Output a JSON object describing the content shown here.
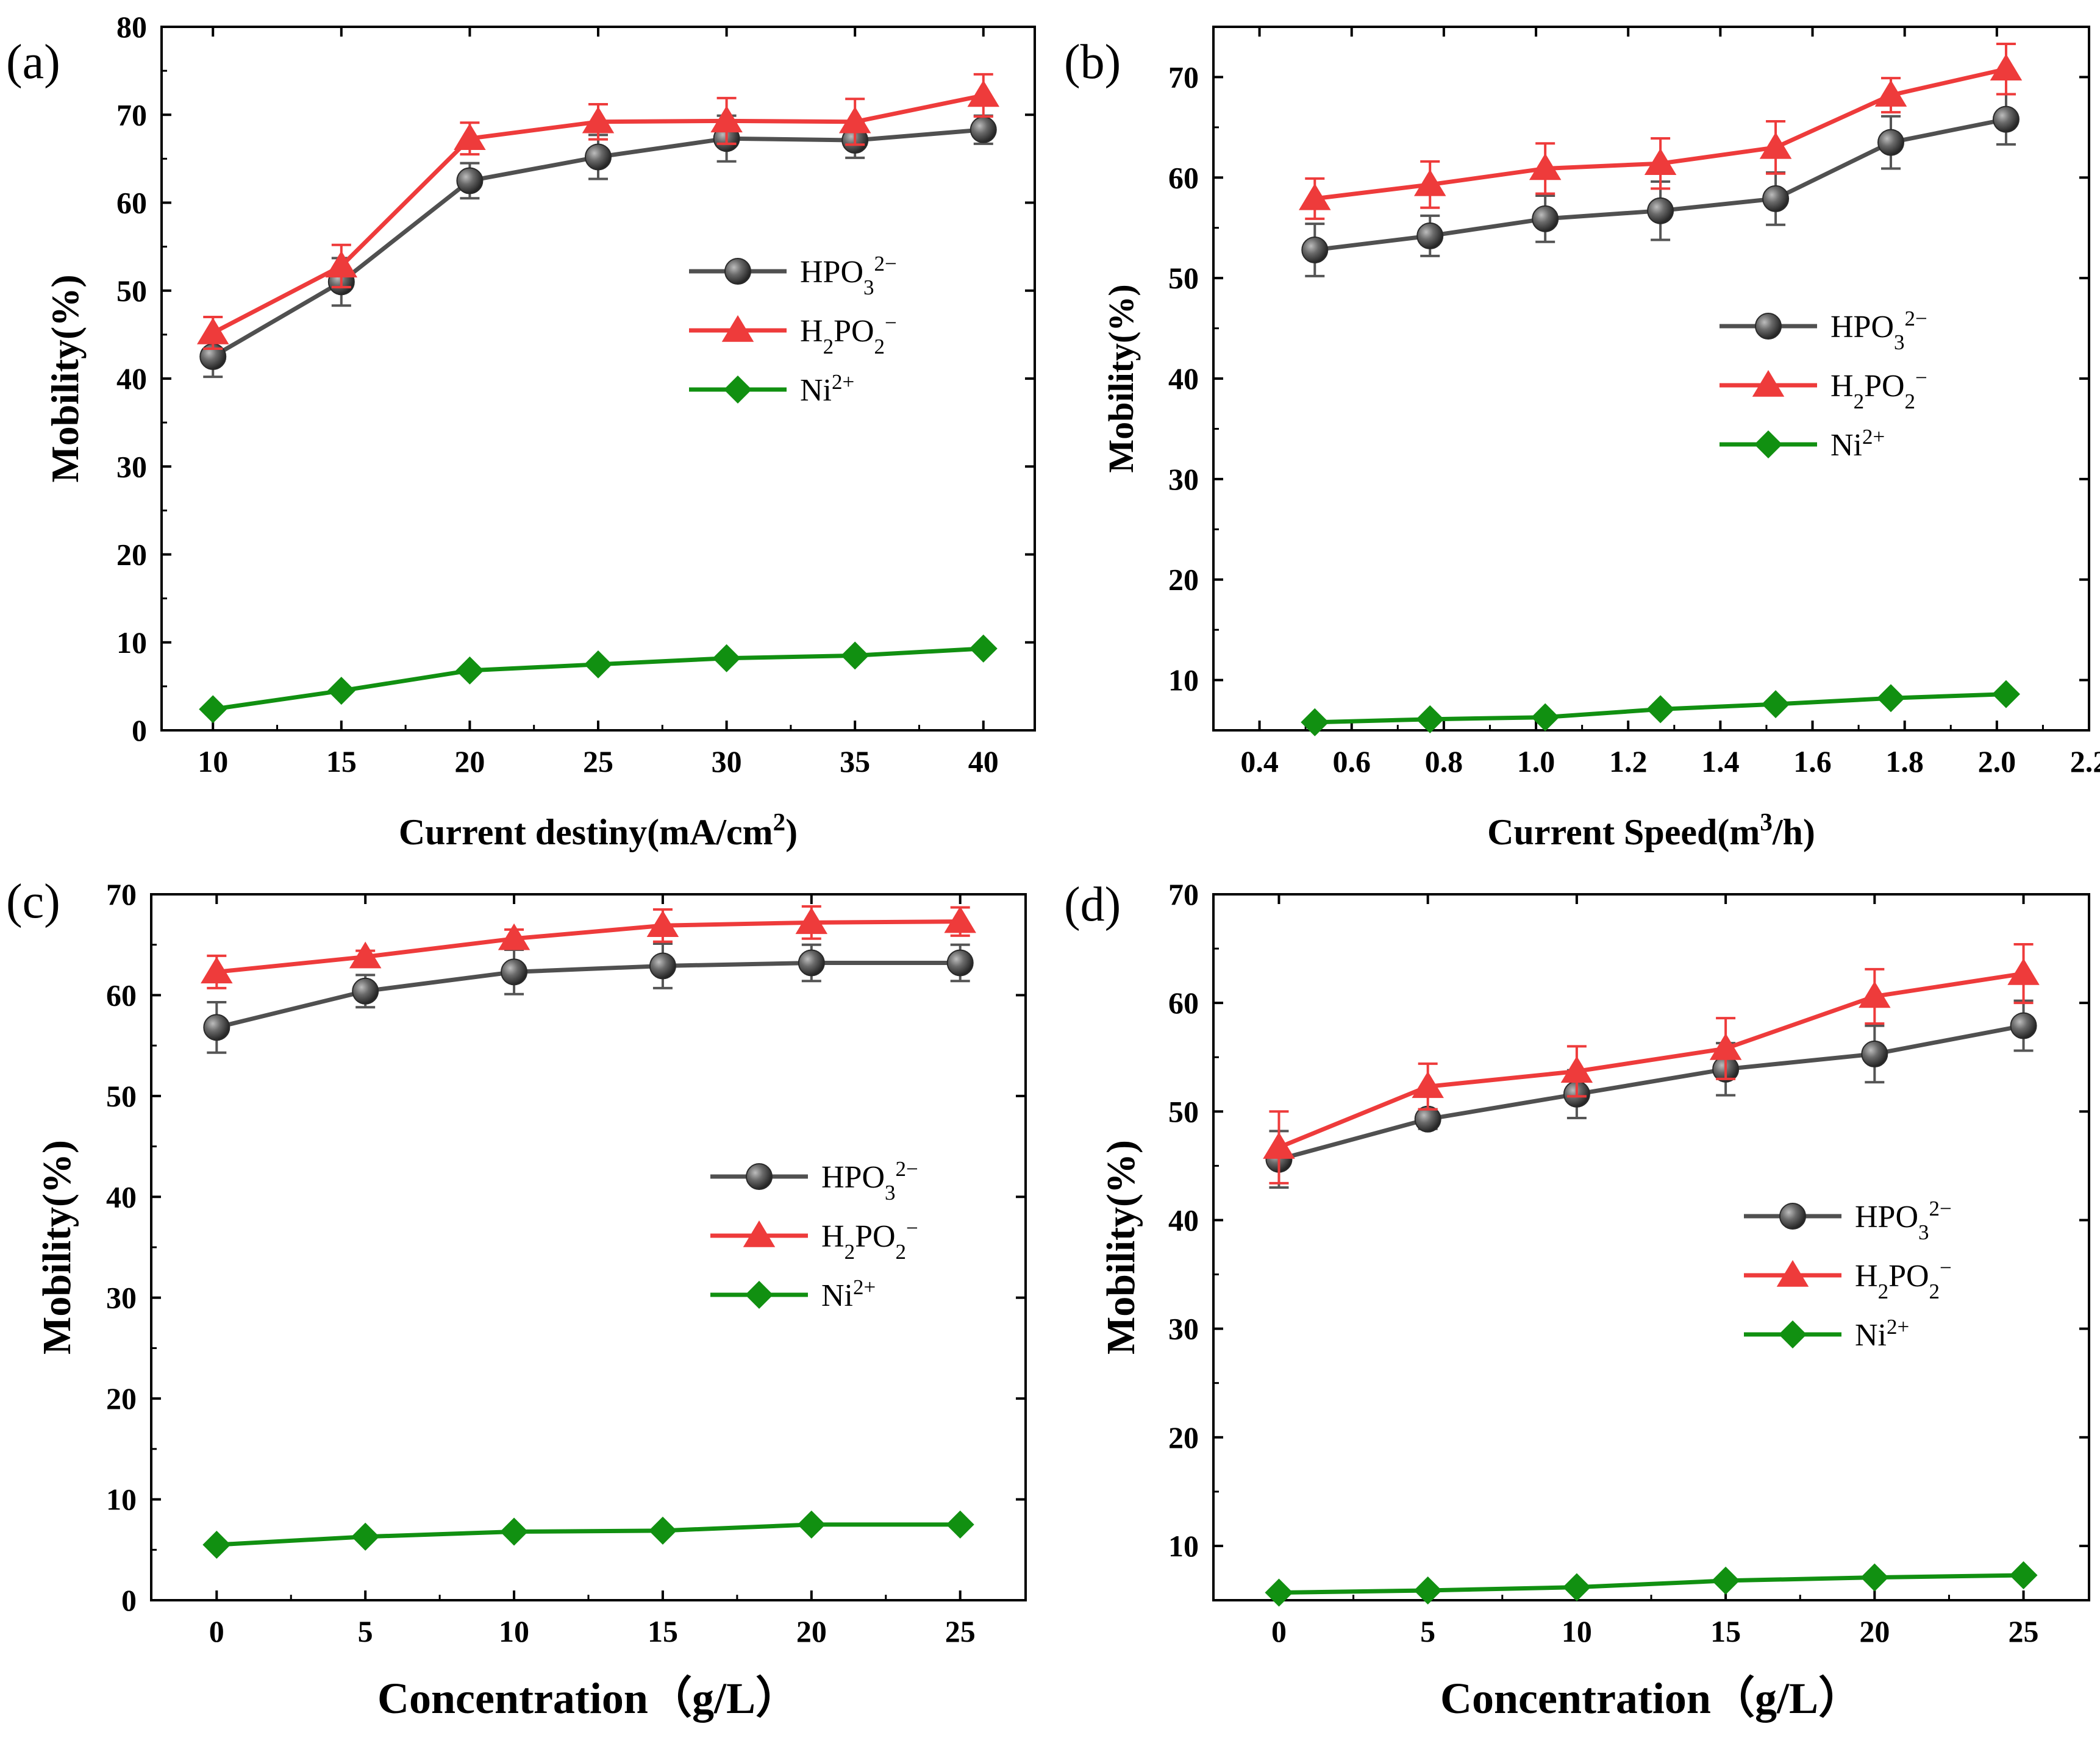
{
  "colors": {
    "hpo3": "#505050",
    "h2po2": "#ee3b3b",
    "ni": "#119011",
    "axis": "#000000"
  },
  "chart_data": [
    {
      "type": "line",
      "panel_label": "(a)",
      "xlabel": "Current destiny(mA/cm",
      "xlabel_sup": "2",
      "xlabel_end": ")",
      "ylabel": "Mobility(%)",
      "xlim": [
        8,
        42
      ],
      "ylim": [
        0,
        80
      ],
      "xticks": [
        "10",
        "15",
        "20",
        "25",
        "30",
        "35",
        "40"
      ],
      "yticks": [
        "0",
        "10",
        "20",
        "30",
        "40",
        "50",
        "60",
        "70",
        "80"
      ],
      "x": [
        10,
        15,
        20,
        25,
        30,
        35,
        40
      ],
      "series": [
        {
          "name": "HPO",
          "sub": "3",
          "sup": "2−",
          "marker": "sphere",
          "values": [
            42.5,
            51.0,
            62.5,
            65.2,
            67.3,
            67.1,
            68.3
          ],
          "errors": [
            2.3,
            2.7,
            2.0,
            2.5,
            2.6,
            2.0,
            1.6
          ]
        },
        {
          "name": "H",
          "sub": "2",
          "mid": "PO",
          "sub2": "2",
          "sup": "−",
          "marker": "triangle",
          "values": [
            45.2,
            52.8,
            67.3,
            69.2,
            69.3,
            69.2,
            72.2
          ],
          "errors": [
            1.8,
            2.4,
            1.8,
            2.0,
            2.6,
            2.6,
            2.4
          ]
        },
        {
          "name": "Ni",
          "sup": "2+",
          "marker": "diamond",
          "values": [
            2.4,
            4.5,
            6.8,
            7.5,
            8.2,
            8.5,
            9.3
          ],
          "errors": [
            0,
            0,
            0,
            0,
            0,
            0,
            0
          ]
        }
      ]
    },
    {
      "type": "line",
      "panel_label": "(b)",
      "xlabel": "Current Speed(m",
      "xlabel_sup": "3",
      "xlabel_end": "/h)",
      "ylabel": "Mobility(%)",
      "xlim": [
        0.3,
        2.2
      ],
      "ylim": [
        5,
        75
      ],
      "xticks": [
        "0.4",
        "0.6",
        "0.8",
        "1.0",
        "1.2",
        "1.4",
        "1.6",
        "1.8",
        "2.0",
        "2.2"
      ],
      "yticks": [
        "10",
        "20",
        "30",
        "40",
        "50",
        "60",
        "70"
      ],
      "x": [
        0.52,
        0.77,
        1.02,
        1.27,
        1.52,
        1.77,
        2.02
      ],
      "series": [
        {
          "name": "HPO",
          "sub": "3",
          "sup": "2−",
          "marker": "sphere",
          "values": [
            52.8,
            54.2,
            55.9,
            56.7,
            57.9,
            63.5,
            65.8
          ],
          "errors": [
            2.6,
            2.0,
            2.3,
            2.9,
            2.6,
            2.6,
            2.5
          ]
        },
        {
          "name": "H",
          "sub": "2",
          "mid": "PO",
          "sub2": "2",
          "sup": "−",
          "marker": "triangle",
          "values": [
            57.9,
            59.3,
            60.9,
            61.4,
            63.0,
            68.2,
            70.8
          ],
          "errors": [
            2.0,
            2.3,
            2.5,
            2.5,
            2.6,
            1.7,
            2.5
          ]
        },
        {
          "name": "Ni",
          "sup": "2+",
          "marker": "diamond",
          "values": [
            5.8,
            6.1,
            6.3,
            7.1,
            7.6,
            8.2,
            8.6
          ],
          "errors": [
            0,
            0,
            0,
            0,
            0,
            0,
            0
          ]
        }
      ]
    },
    {
      "type": "line",
      "panel_label": "(c)",
      "xlabel": "Concentration（g/L）",
      "ylabel": "Mobility(%)",
      "xlim": [
        -2.2,
        27.2
      ],
      "ylim": [
        0,
        70
      ],
      "xticks": [
        "0",
        "5",
        "10",
        "15",
        "20",
        "25"
      ],
      "yticks": [
        "0",
        "10",
        "20",
        "30",
        "40",
        "50",
        "60",
        "70"
      ],
      "x": [
        0,
        5,
        10,
        15,
        20,
        25
      ],
      "series": [
        {
          "name": "HPO",
          "sub": "3",
          "sup": "2−",
          "marker": "sphere",
          "values": [
            56.8,
            60.4,
            62.3,
            62.9,
            63.2,
            63.2
          ],
          "errors": [
            2.5,
            1.6,
            2.2,
            2.2,
            1.8,
            1.8
          ]
        },
        {
          "name": "H",
          "sub": "2",
          "mid": "PO",
          "sub2": "2",
          "sup": "−",
          "marker": "triangle",
          "values": [
            62.3,
            63.8,
            65.6,
            66.9,
            67.2,
            67.3
          ],
          "errors": [
            1.6,
            0.6,
            0.9,
            1.6,
            1.6,
            1.4
          ]
        },
        {
          "name": "Ni",
          "sup": "2+",
          "marker": "diamond",
          "values": [
            5.5,
            6.3,
            6.8,
            6.9,
            7.5,
            7.5
          ],
          "errors": [
            0,
            0,
            0,
            0,
            0,
            0
          ]
        }
      ]
    },
    {
      "type": "line",
      "panel_label": "(d)",
      "xlabel": "Concentration（g/L）",
      "ylabel": "Mobility(%)",
      "xlim": [
        -2.2,
        27.2
      ],
      "ylim": [
        5,
        70
      ],
      "xticks": [
        "0",
        "5",
        "10",
        "15",
        "20",
        "25"
      ],
      "yticks": [
        "10",
        "20",
        "30",
        "40",
        "50",
        "60",
        "70"
      ],
      "x": [
        0,
        5,
        10,
        15,
        20,
        25
      ],
      "series": [
        {
          "name": "HPO",
          "sub": "3",
          "sup": "2−",
          "marker": "sphere",
          "values": [
            45.6,
            49.3,
            51.6,
            53.9,
            55.3,
            57.9
          ],
          "errors": [
            2.6,
            0.9,
            2.2,
            2.4,
            2.6,
            2.3
          ]
        },
        {
          "name": "H",
          "sub": "2",
          "mid": "PO",
          "sub2": "2",
          "sup": "−",
          "marker": "triangle",
          "values": [
            46.7,
            52.3,
            53.7,
            55.8,
            60.6,
            62.7
          ],
          "errors": [
            3.3,
            2.1,
            2.3,
            2.8,
            2.5,
            2.7
          ]
        },
        {
          "name": "Ni",
          "sup": "2+",
          "marker": "diamond",
          "values": [
            5.7,
            5.9,
            6.2,
            6.8,
            7.1,
            7.3
          ],
          "errors": [
            0,
            0,
            0,
            0,
            0,
            0
          ]
        }
      ]
    }
  ]
}
